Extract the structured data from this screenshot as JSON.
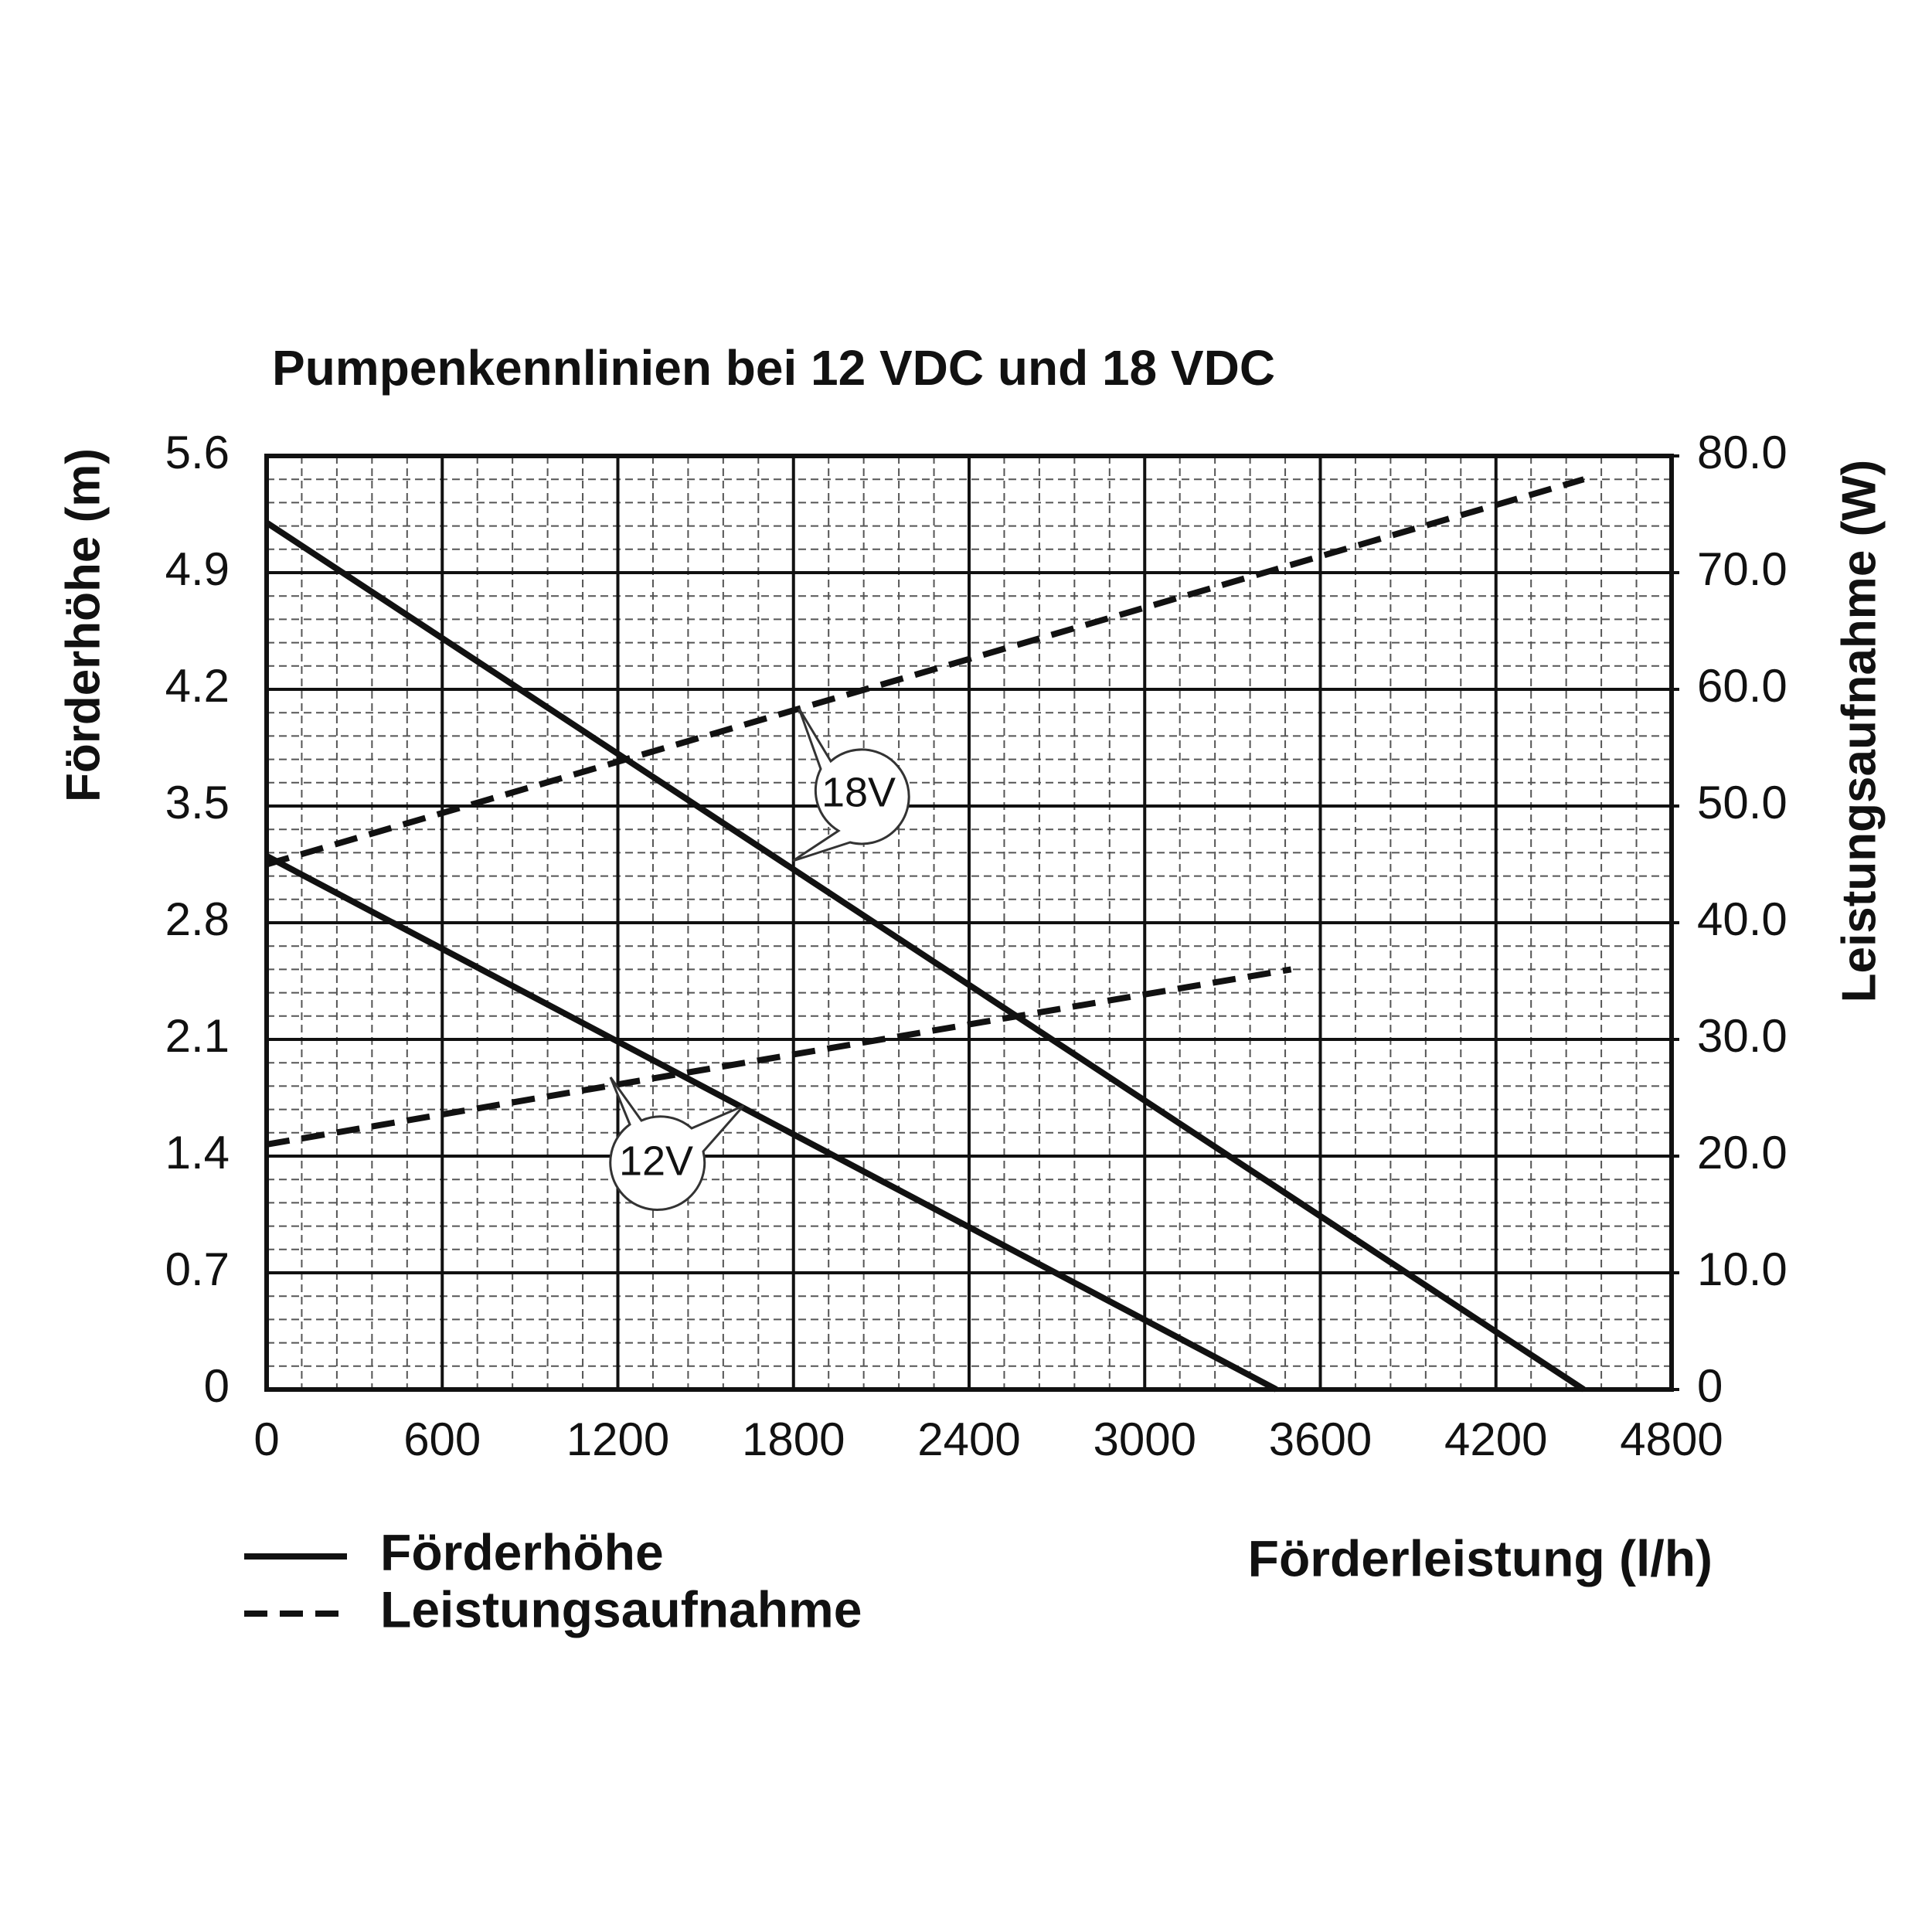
{
  "chart_data": {
    "type": "line",
    "title": "Pumpenkennlinien bei 12 VDC und 18 VDC",
    "ylabel": "Förderhöhe (m)",
    "y2label": "Leistungsaufnahme (W)",
    "xlabel": "Förderleistung (l/h)",
    "xlim": [
      0,
      4800
    ],
    "xticks": [
      0,
      600,
      1200,
      1800,
      2400,
      3000,
      3600,
      4200,
      4800
    ],
    "ylim": [
      0,
      5.6
    ],
    "yticks": [
      0,
      0.7,
      1.4,
      2.1,
      2.8,
      3.5,
      4.2,
      4.9,
      5.6
    ],
    "y2lim": [
      0,
      80
    ],
    "y2ticks": [
      0,
      {
        "value": 10,
        "label": "10.0"
      },
      {
        "value": 20,
        "label": "20.0"
      },
      {
        "value": 30,
        "label": "30.0"
      },
      {
        "value": 40,
        "label": "40.0"
      },
      {
        "value": 50,
        "label": "50.0"
      },
      {
        "value": 60,
        "label": "60.0"
      },
      {
        "value": 70,
        "label": "70.0"
      },
      {
        "value": 80,
        "label": "80.0"
      }
    ],
    "grid": true,
    "legend": [
      {
        "label": "Förderhöhe",
        "style": "solid"
      },
      {
        "label": "Leistungsaufnahme",
        "style": "dashed"
      }
    ],
    "annotations": [
      "18V",
      "12V"
    ],
    "series": [
      {
        "x": [
          0,
          4500
        ],
        "values": [
          5.2,
          0
        ],
        "axis": "y",
        "style": "solid",
        "color": "#111111"
      },
      {
        "x": [
          0,
          3450
        ],
        "values": [
          3.2,
          0
        ],
        "axis": "y",
        "style": "solid",
        "color": "#111111"
      },
      {
        "x": [
          0,
          4500
        ],
        "values": [
          45,
          78
        ],
        "axis": "y2",
        "style": "dashed",
        "color": "#111111"
      },
      {
        "x": [
          0,
          3500
        ],
        "values": [
          21,
          36
        ],
        "axis": "y2",
        "style": "dashed",
        "color": "#111111"
      }
    ]
  }
}
